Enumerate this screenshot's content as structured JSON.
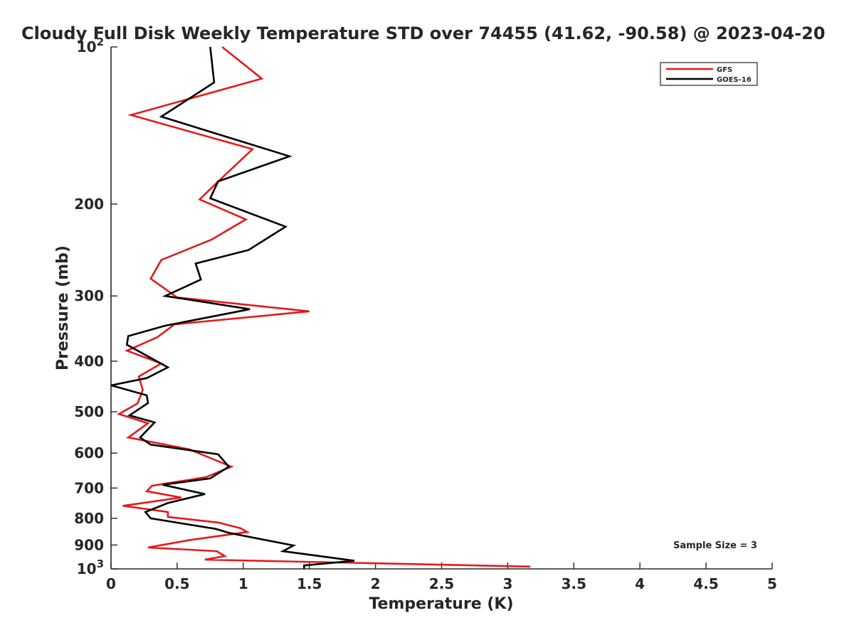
{
  "chart_data": {
    "type": "line",
    "title": "Cloudy Full Disk Weekly Temperature STD over 74455 (41.62, -90.58) @ 2023-04-20",
    "xlabel": "Temperature (K)",
    "ylabel": "Pressure (mb)",
    "xlim": [
      0,
      5
    ],
    "ylim": [
      100,
      1000
    ],
    "y_scale": "log",
    "y_reversed": true,
    "grid": false,
    "legend_position": "top-right",
    "x_ticks": [
      0,
      0.5,
      1,
      1.5,
      2,
      2.5,
      3,
      3.5,
      4,
      4.5,
      5
    ],
    "x_tick_labels": [
      "0",
      "0.5",
      "1",
      "1.5",
      "2",
      "2.5",
      "3",
      "3.5",
      "4",
      "4.5",
      "5"
    ],
    "y_ticks": [
      100,
      200,
      300,
      400,
      500,
      600,
      700,
      800,
      900,
      1000
    ],
    "y_tick_labels": [
      "10^2",
      "200",
      "300",
      "400",
      "500",
      "600",
      "700",
      "800",
      "900",
      "10^3"
    ],
    "annotation": "Sample Size = 3",
    "series": [
      {
        "name": "GFS",
        "color": "#e41a1c",
        "points": [
          [
            0.84,
            100
          ],
          [
            1.14,
            115
          ],
          [
            0.15,
            135
          ],
          [
            1.07,
            157
          ],
          [
            0.82,
            180
          ],
          [
            0.67,
            196
          ],
          [
            1.02,
            214
          ],
          [
            0.76,
            234
          ],
          [
            0.38,
            256
          ],
          [
            0.3,
            278
          ],
          [
            0.5,
            302
          ],
          [
            1.5,
            321
          ],
          [
            0.48,
            340
          ],
          [
            0.35,
            360
          ],
          [
            0.12,
            382
          ],
          [
            0.38,
            404
          ],
          [
            0.21,
            428
          ],
          [
            0.24,
            454
          ],
          [
            0.2,
            482
          ],
          [
            0.06,
            505
          ],
          [
            0.28,
            526
          ],
          [
            0.13,
            560
          ],
          [
            0.59,
            590
          ],
          [
            0.91,
            637
          ],
          [
            0.72,
            667
          ],
          [
            0.31,
            693
          ],
          [
            0.27,
            710
          ],
          [
            0.53,
            730
          ],
          [
            0.09,
            757
          ],
          [
            0.43,
            778
          ],
          [
            0.43,
            795
          ],
          [
            0.81,
            815
          ],
          [
            0.98,
            836
          ],
          [
            1.03,
            850
          ],
          [
            0.6,
            880
          ],
          [
            0.28,
            910
          ],
          [
            0.8,
            925
          ],
          [
            0.86,
            945
          ],
          [
            0.71,
            960
          ],
          [
            3.17,
            990
          ]
        ]
      },
      {
        "name": "GOES-16",
        "color": "#000000",
        "points": [
          [
            0.75,
            100
          ],
          [
            0.78,
            117
          ],
          [
            0.38,
            136
          ],
          [
            1.35,
            162
          ],
          [
            0.81,
            181
          ],
          [
            0.75,
            195
          ],
          [
            1.32,
            221
          ],
          [
            1.04,
            245
          ],
          [
            0.64,
            260
          ],
          [
            0.68,
            279
          ],
          [
            0.41,
            300
          ],
          [
            1.05,
            318
          ],
          [
            0.41,
            342
          ],
          [
            0.13,
            358
          ],
          [
            0.12,
            372
          ],
          [
            0.43,
            411
          ],
          [
            0.27,
            431
          ],
          [
            0.0,
            445
          ],
          [
            0.27,
            465
          ],
          [
            0.28,
            481
          ],
          [
            0.14,
            508
          ],
          [
            0.33,
            524
          ],
          [
            0.22,
            560
          ],
          [
            0.3,
            578
          ],
          [
            0.81,
            603
          ],
          [
            0.89,
            637
          ],
          [
            0.75,
            671
          ],
          [
            0.39,
            690
          ],
          [
            0.71,
            719
          ],
          [
            0.43,
            748
          ],
          [
            0.26,
            778
          ],
          [
            0.3,
            800
          ],
          [
            0.79,
            838
          ],
          [
            0.9,
            854
          ],
          [
            1.38,
            902
          ],
          [
            1.3,
            925
          ],
          [
            1.84,
            965
          ],
          [
            1.46,
            985
          ],
          [
            1.46,
            1000
          ]
        ]
      }
    ]
  }
}
